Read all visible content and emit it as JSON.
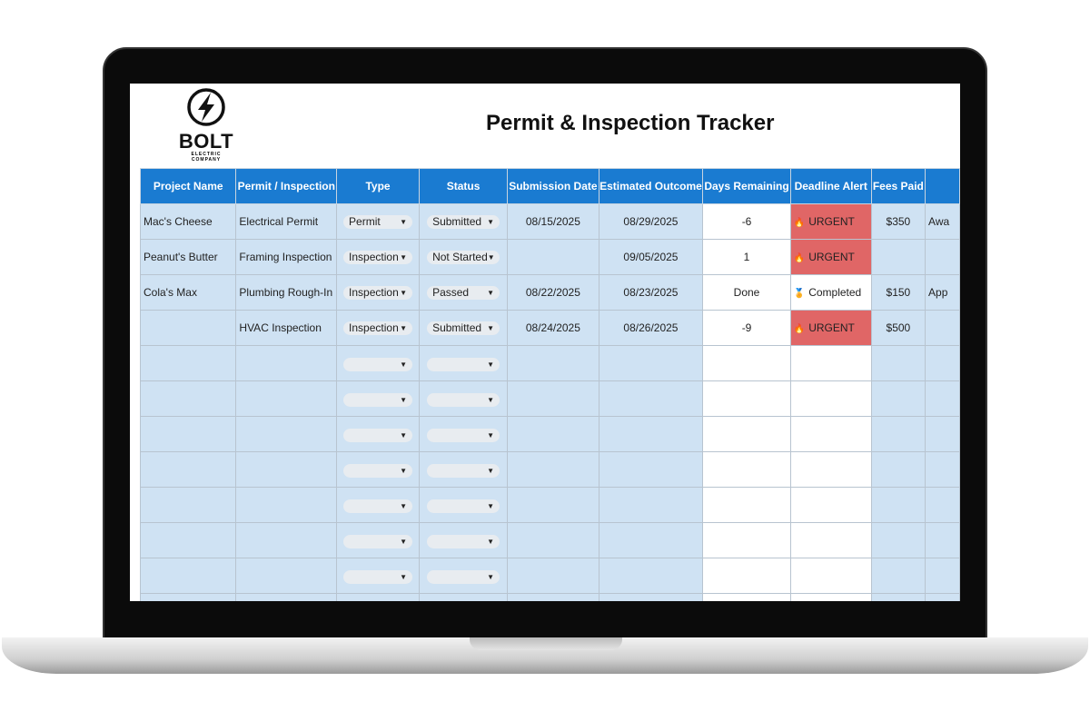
{
  "title": "Permit & Inspection Tracker",
  "logo": {
    "brand": "BOLT",
    "sub1": "ELECTRIC",
    "sub2": "COMPANY"
  },
  "columns": [
    "Project Name",
    "Permit / Inspection",
    "Type",
    "Status",
    "Submission Date",
    "Estimated Outcome",
    "Days Remaining",
    "Deadline Alert",
    "Fees Paid",
    ""
  ],
  "rows": [
    {
      "project": "Mac's Cheese",
      "item": "Electrical Permit",
      "type": "Permit",
      "status": "Submitted",
      "submitted": "08/15/2025",
      "outcome": "08/29/2025",
      "days": "-6",
      "alert": "URGENT",
      "alert_icon": "fire-icon",
      "fees": "$350",
      "notes": "Awa"
    },
    {
      "project": "Peanut's Butter",
      "item": "Framing Inspection",
      "type": "Inspection",
      "status": "Not Started",
      "submitted": "",
      "outcome": "09/05/2025",
      "days": "1",
      "alert": "URGENT",
      "alert_icon": "fire-icon",
      "fees": "",
      "notes": ""
    },
    {
      "project": "Cola's Max",
      "item": "Plumbing Rough-In",
      "type": "Inspection",
      "status": "Passed",
      "submitted": "08/22/2025",
      "outcome": "08/23/2025",
      "days": "Done",
      "alert": "Completed",
      "alert_icon": "medal-icon",
      "fees": "$150",
      "notes": "App"
    },
    {
      "project": "",
      "item": "HVAC Inspection",
      "type": "Inspection",
      "status": "Submitted",
      "submitted": "08/24/2025",
      "outcome": "08/26/2025",
      "days": "-9",
      "alert": "URGENT",
      "alert_icon": "fire-icon",
      "fees": "$500",
      "notes": ""
    }
  ],
  "empty_rows": 8,
  "colors": {
    "header": "#1a7bd1",
    "row": "#cfe2f3",
    "urgent": "#e06666"
  }
}
